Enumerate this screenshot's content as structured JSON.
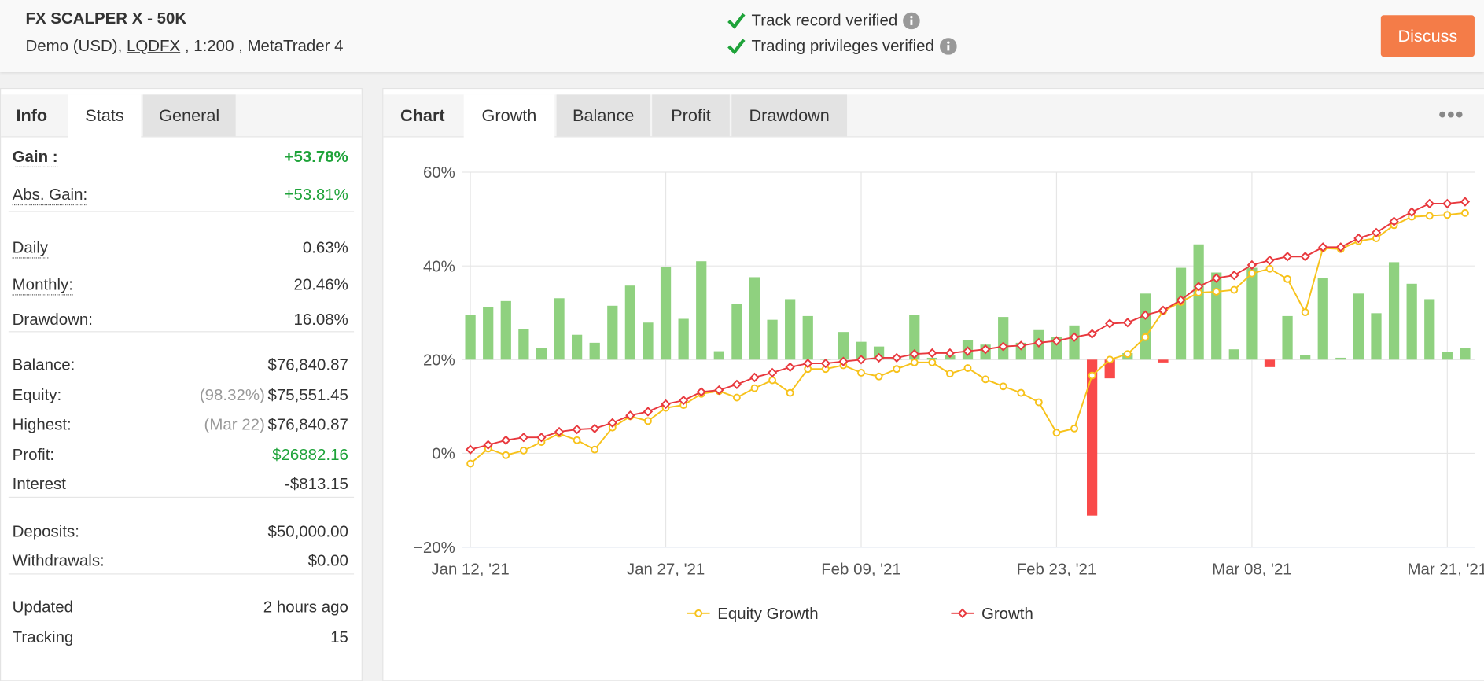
{
  "header": {
    "title": "FX SCALPER X - 50K",
    "account": "Demo (USD),",
    "broker": "LQDFX",
    "details": ", 1:200 , MetaTrader 4",
    "verified": [
      "Track record verified",
      "Trading privileges verified"
    ],
    "button": "Discuss"
  },
  "left_tabs": [
    "Info",
    "Stats",
    "General"
  ],
  "stats": [
    [
      {
        "label": "Gain :",
        "value": "+53.78%"
      },
      {
        "label": "Abs. Gain:",
        "value": "+53.81%"
      }
    ],
    [
      {
        "label": "Daily",
        "value": "0.63%"
      },
      {
        "label": "Monthly:",
        "value": "20.46%"
      },
      {
        "label": "Drawdown:",
        "value": "16.08%"
      }
    ],
    [
      {
        "label": "Balance:",
        "value": "$76,840.87"
      },
      {
        "label": "Equity:",
        "note": "(98.32%)",
        "value": "$75,551.45"
      },
      {
        "label": "Highest:",
        "note": "(Mar 22)",
        "value": "$76,840.87"
      },
      {
        "label": "Profit:",
        "value": "$26882.16"
      },
      {
        "label": "Interest",
        "value": "-$813.15"
      }
    ],
    [
      {
        "label": "Deposits:",
        "value": "$50,000.00"
      },
      {
        "label": "Withdrawals:",
        "value": "$0.00"
      }
    ],
    [
      {
        "label": "Updated",
        "value": "2 hours ago"
      },
      {
        "label": "Tracking",
        "value": "15"
      }
    ]
  ],
  "chart_tabs": [
    "Chart",
    "Growth",
    "Balance",
    "Profit",
    "Drawdown"
  ],
  "chart_data": {
    "type": "line",
    "categories": [
      "Jan 12, '21",
      null,
      null,
      null,
      null,
      null,
      null,
      null,
      null,
      null,
      null,
      "Jan 27, '21",
      null,
      null,
      null,
      null,
      null,
      null,
      null,
      null,
      null,
      null,
      "Feb 09, '21",
      null,
      null,
      null,
      null,
      null,
      null,
      null,
      null,
      null,
      null,
      "Feb 23, '21",
      null,
      null,
      null,
      null,
      null,
      null,
      null,
      null,
      null,
      null,
      "Mar 08, '21",
      null,
      null,
      null,
      null,
      null,
      null,
      null,
      null,
      null,
      null,
      "Mar 21, '21",
      null
    ],
    "ylim": [
      -20,
      60
    ],
    "yticks": [
      {
        "value": -20,
        "label": "−20%"
      },
      {
        "value": 0,
        "label": "0%"
      },
      {
        "value": 20,
        "label": "20%"
      },
      {
        "value": 40,
        "label": "40%"
      },
      {
        "value": 60,
        "label": "60%"
      }
    ],
    "y2lim": [
      -4,
      4
    ],
    "grid": true,
    "series": [
      {
        "type": "bar",
        "axis": "y2",
        "color": "#8fd17f",
        "negative_color": "#f94a4a",
        "values": [
          0.95,
          1.13,
          1.25,
          0.65,
          0.24,
          1.31,
          0.53,
          0.36,
          1.15,
          1.58,
          0.79,
          1.98,
          0.87,
          2.1,
          0.18,
          1.19,
          1.76,
          0.85,
          1.29,
          0.93,
          0.02,
          0.59,
          0.38,
          0.28,
          0.02,
          0.95,
          0.04,
          0.1,
          0.42,
          0.32,
          0.91,
          0.36,
          0.63,
          0.48,
          0.73,
          -3.33,
          -0.4,
          0.14,
          1.41,
          -0.06,
          1.96,
          2.46,
          1.86,
          0.22,
          1.96,
          -0.16,
          0.93,
          0.1,
          1.74,
          0.04,
          1.41,
          0.99,
          2.08,
          1.62,
          1.29,
          0.16,
          0.24
        ]
      },
      {
        "name": "Equity Growth",
        "color": "#f7c21b",
        "marker": "circle",
        "values": [
          -2.2,
          1.0,
          -0.4,
          0.6,
          2.4,
          4.2,
          2.8,
          0.8,
          5.5,
          7.9,
          6.9,
          9.7,
          10.3,
          12.7,
          13.3,
          11.9,
          13.9,
          15.6,
          12.9,
          18.0,
          18.0,
          18.8,
          17.2,
          16.4,
          18.0,
          19.4,
          19.4,
          17.0,
          18.2,
          15.8,
          14.3,
          12.9,
          10.9,
          4.4,
          5.3,
          16.6,
          20.0,
          21.2,
          24.8,
          30.3,
          32.3,
          34.3,
          34.5,
          34.9,
          38.4,
          39.4,
          37.2,
          30.1,
          43.8,
          43.6,
          45.3,
          45.9,
          48.7,
          50.5,
          50.7,
          50.9,
          51.3
        ]
      },
      {
        "name": "Growth",
        "color": "#e8383d",
        "marker": "diamond",
        "values": [
          0.8,
          1.8,
          2.8,
          3.4,
          3.4,
          4.6,
          5.1,
          5.3,
          6.5,
          8.1,
          8.9,
          10.5,
          11.3,
          13.1,
          13.5,
          14.7,
          16.2,
          17.2,
          18.4,
          19.2,
          19.2,
          19.6,
          20.0,
          20.4,
          20.4,
          21.2,
          21.4,
          21.4,
          21.8,
          22.2,
          22.8,
          23.0,
          23.6,
          24.0,
          24.8,
          25.5,
          27.7,
          27.9,
          29.5,
          30.5,
          32.7,
          35.6,
          37.4,
          38.0,
          40.2,
          41.2,
          42.0,
          42.0,
          44.0,
          44.0,
          45.9,
          47.1,
          49.5,
          51.5,
          53.3,
          53.3,
          53.7
        ]
      }
    ]
  }
}
